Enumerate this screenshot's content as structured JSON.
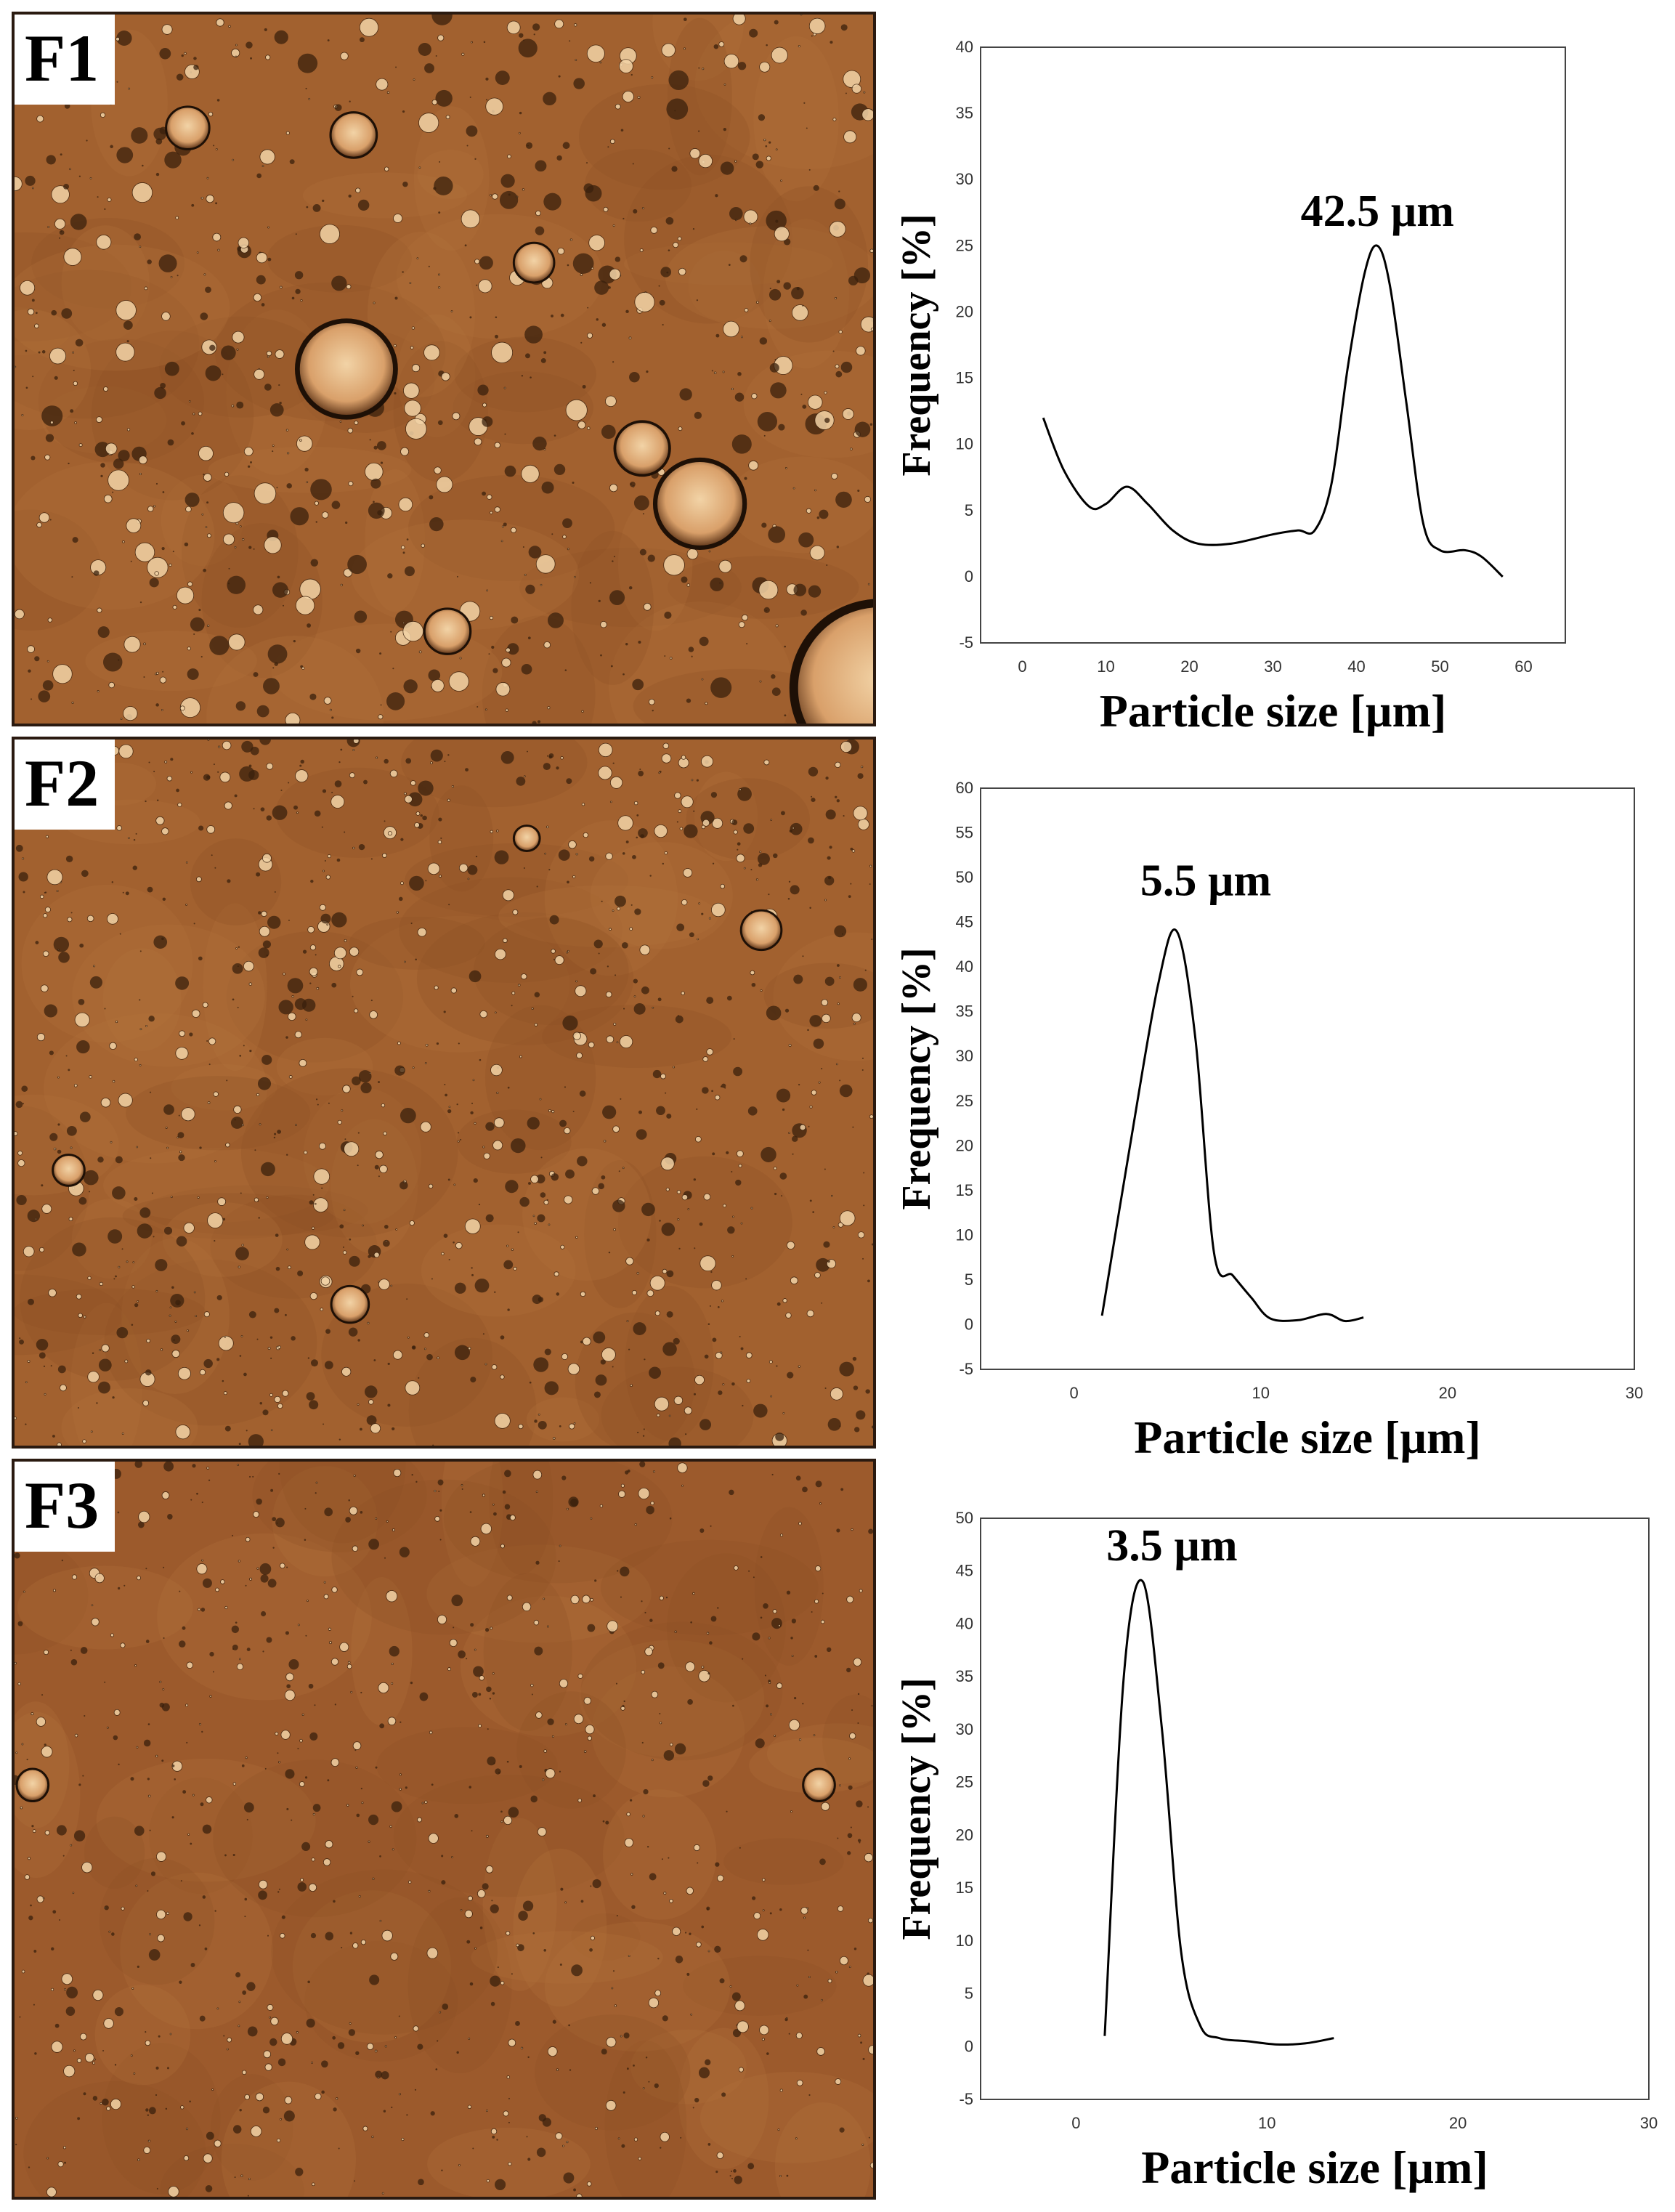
{
  "panels": [
    {
      "label": "F1"
    },
    {
      "label": "F2"
    },
    {
      "label": "F3"
    }
  ],
  "colors": {
    "micrograph_base": "#a2612f",
    "micrograph_dark": "#5a3115",
    "micrograph_light": "#f2d3a6",
    "curve": "#000000"
  },
  "chart_data": [
    {
      "type": "line",
      "xlabel": "Particle size [µm]",
      "ylabel": "Frequency [%]",
      "xlim": [
        -5,
        65
      ],
      "ylim": [
        -5,
        40
      ],
      "xticks": [
        "0",
        "10",
        "20",
        "30",
        "40",
        "50",
        "60"
      ],
      "yticks": [
        "-5",
        "0",
        "5",
        "10",
        "15",
        "20",
        "25",
        "30",
        "35",
        "40"
      ],
      "annotation": "42.5 µm",
      "annotation_at": [
        42.5,
        26.5
      ],
      "x": [
        2.5,
        5,
        8,
        10,
        12.5,
        15,
        18,
        21,
        25,
        30,
        33,
        35,
        37,
        39,
        41,
        42.5,
        44,
        46,
        48,
        50,
        53,
        55,
        57.5
      ],
      "y": [
        12,
        8,
        5.3,
        5.5,
        6.8,
        5.5,
        3.5,
        2.5,
        2.5,
        3.2,
        3.5,
        3.5,
        7,
        16,
        23,
        25,
        22,
        13,
        4,
        2,
        2,
        1.5,
        0
      ]
    },
    {
      "type": "line",
      "xlabel": "Particle size [µm]",
      "ylabel": "Frequency [%]",
      "xlim": [
        -5,
        30
      ],
      "ylim": [
        -5,
        60
      ],
      "xticks": [
        "0",
        "10",
        "20",
        "30"
      ],
      "yticks": [
        "-5",
        "0",
        "5",
        "10",
        "15",
        "20",
        "25",
        "30",
        "35",
        "40",
        "45",
        "50",
        "55",
        "60"
      ],
      "annotation": "5.5 µm",
      "annotation_at": [
        5.5,
        48
      ],
      "x": [
        1.5,
        3,
        4.5,
        5.5,
        6.5,
        7.5,
        8.5,
        9.5,
        10.5,
        12,
        13.5,
        14.5,
        15.5
      ],
      "y": [
        1,
        20,
        38,
        44,
        32,
        8,
        5.5,
        3,
        0.7,
        0.5,
        1.2,
        0.4,
        0.8
      ]
    },
    {
      "type": "line",
      "xlabel": "Particle size [µm]",
      "ylabel": "Frequency [%]",
      "xlim": [
        -5,
        30
      ],
      "ylim": [
        -5,
        50
      ],
      "xticks": [
        "0",
        "10",
        "20",
        "30"
      ],
      "yticks": [
        "-5",
        "0",
        "5",
        "10",
        "15",
        "20",
        "25",
        "30",
        "35",
        "40",
        "45",
        "50"
      ],
      "annotation": "3.5 µm",
      "annotation_at": [
        3.5,
        46
      ],
      "x": [
        1.5,
        2.5,
        3.5,
        4.5,
        5.5,
        6.5,
        7.5,
        9,
        10.5,
        12,
        13.5
      ],
      "y": [
        1,
        35,
        44,
        30,
        9,
        2,
        0.8,
        0.5,
        0.2,
        0.3,
        0.8
      ]
    }
  ]
}
